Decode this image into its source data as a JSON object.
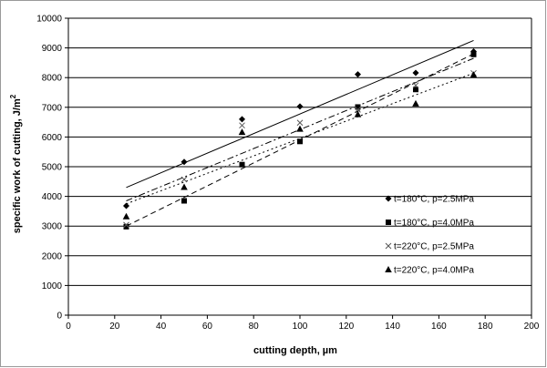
{
  "chart_data": {
    "type": "scatter",
    "title": "",
    "xlabel": "cutting depth, µm",
    "ylabel_main": "specific work of cutting, J/m",
    "ylabel_sup": "2",
    "xlim": [
      0,
      200
    ],
    "ylim": [
      0,
      10000
    ],
    "x_ticks": [
      "0",
      "20",
      "40",
      "60",
      "80",
      "100",
      "120",
      "140",
      "160",
      "180",
      "200"
    ],
    "y_ticks": [
      "0",
      "1000",
      "2000",
      "3000",
      "4000",
      "5000",
      "6000",
      "7000",
      "8000",
      "9000",
      "10000"
    ],
    "grid": "horizontal",
    "legend_position": "inside-right",
    "series": [
      {
        "name": "t=180°C, p=2.5MPa",
        "marker": "diamond",
        "line_style": "solid",
        "x": [
          25,
          50,
          75,
          100,
          125,
          150,
          175
        ],
        "y": [
          3680,
          5160,
          6600,
          7030,
          8110,
          8160,
          8880
        ],
        "trend": [
          [
            25,
            4300
          ],
          [
            175,
            9250
          ]
        ]
      },
      {
        "name": "t=180°C, p=4.0MPa",
        "marker": "square",
        "line_style": "dash",
        "x": [
          25,
          50,
          75,
          100,
          125,
          150,
          175
        ],
        "y": [
          2980,
          3850,
          5070,
          5850,
          7010,
          7600,
          8780
        ],
        "trend": [
          [
            25,
            3000
          ],
          [
            175,
            8800
          ]
        ]
      },
      {
        "name": "t=220°C, p=2.5MPa",
        "marker": "x",
        "line_style": "dashdot",
        "x": [
          25,
          50,
          75,
          100,
          125,
          150,
          175
        ],
        "y": [
          3040,
          4570,
          6390,
          6480,
          6920,
          7740,
          8150
        ],
        "trend": [
          [
            25,
            3850
          ],
          [
            175,
            8650
          ]
        ]
      },
      {
        "name": "t=220°C, p=4.0MPa",
        "marker": "triangle",
        "line_style": "dot",
        "x": [
          25,
          50,
          75,
          100,
          125,
          150,
          175
        ],
        "y": [
          3320,
          4310,
          6160,
          6270,
          6760,
          7120,
          8090
        ],
        "trend": [
          [
            25,
            3750
          ],
          [
            175,
            8150
          ]
        ]
      }
    ]
  },
  "colors": {
    "marker": "#000000",
    "grid": "#000000",
    "frame": "#9a9a9a"
  }
}
